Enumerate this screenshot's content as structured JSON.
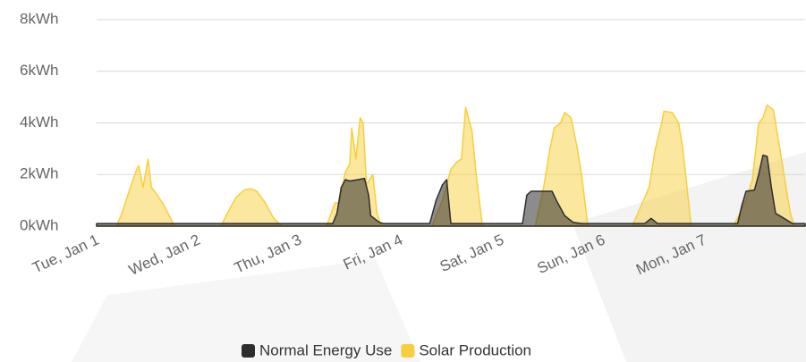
{
  "chart_data": {
    "type": "area",
    "xlim": [
      0,
      168
    ],
    "xticks": [
      {
        "value": 0,
        "label": "Tue, Jan 1"
      },
      {
        "value": 24,
        "label": "Wed, Jan 2"
      },
      {
        "value": 48,
        "label": "Thu, Jan 3"
      },
      {
        "value": 72,
        "label": "Fri, Jan 4"
      },
      {
        "value": 96,
        "label": "Sat, Jan 5"
      },
      {
        "value": 120,
        "label": "Sun, Jan 6"
      },
      {
        "value": 144,
        "label": "Mon, Jan 7"
      }
    ],
    "ylim": [
      0,
      8
    ],
    "yticks": [
      {
        "value": 0,
        "label": "0kWh"
      },
      {
        "value": 2,
        "label": "2kWh"
      },
      {
        "value": 4,
        "label": "4kWh"
      },
      {
        "value": 6,
        "label": "6kWh"
      },
      {
        "value": 8,
        "label": "8kWh"
      }
    ],
    "grid": true,
    "legend": "bottom",
    "series": [
      {
        "name": "Solar Production",
        "color": "#f7cf3e",
        "x": [
          0,
          4.7,
          6,
          8,
          9.5,
          10,
          11,
          12.2,
          13,
          14,
          16,
          18.5,
          29.5,
          31,
          33,
          35,
          36.5,
          38,
          40,
          42,
          44,
          54.5,
          56.5,
          57.5,
          59,
          60,
          60.5,
          61.5,
          62.5,
          63.2,
          64,
          65.5,
          66.5,
          67.5,
          79.5,
          82,
          84,
          85.5,
          86.5,
          87.5,
          89,
          90,
          91.5,
          104,
          106,
          107.5,
          108.5,
          110,
          111,
          112.5,
          114,
          115,
          116.5,
          127,
          131,
          132.5,
          134,
          134.5,
          136.5,
          138,
          139,
          141,
          151,
          154,
          155.5,
          157,
          158,
          159,
          160.5,
          162,
          163,
          164.5,
          165.5,
          168
        ],
        "values": [
          0,
          0,
          0.5,
          1.5,
          2.2,
          2.35,
          1.5,
          2.6,
          1.5,
          1.3,
          0.8,
          0,
          0,
          0.5,
          1.1,
          1.4,
          1.45,
          1.35,
          0.9,
          0.3,
          0,
          0,
          0.9,
          0.9,
          2.1,
          2.4,
          3.8,
          2.6,
          4.2,
          4.0,
          1.6,
          2.0,
          0.5,
          0,
          0,
          1.0,
          2.2,
          2.5,
          2.6,
          4.6,
          3.7,
          2.0,
          0,
          0,
          1.5,
          3.0,
          3.8,
          4.0,
          4.4,
          4.2,
          3.0,
          2.0,
          0,
          0,
          1.5,
          3.0,
          4.0,
          4.45,
          4.4,
          4.0,
          3.0,
          0,
          0,
          1.0,
          1.8,
          4.0,
          4.2,
          4.7,
          4.5,
          3.0,
          2.0,
          0.5,
          0,
          0
        ]
      },
      {
        "name": "Normal Energy Use",
        "color": "#2e2e2e",
        "x": [
          0,
          56,
          57,
          58,
          59,
          60,
          62,
          63.5,
          64.5,
          65,
          67,
          68,
          79,
          80.5,
          82,
          83,
          84,
          101,
          102,
          103,
          108,
          109,
          111,
          113,
          115,
          130,
          131.5,
          133,
          152,
          153,
          154,
          156,
          157,
          158,
          159,
          160,
          161,
          163,
          165,
          168
        ],
        "values": [
          0.1,
          0.1,
          0.5,
          1.5,
          1.8,
          1.75,
          1.8,
          1.85,
          1.2,
          0.4,
          0.15,
          0.1,
          0.1,
          1.0,
          1.6,
          1.8,
          0.1,
          0.1,
          1.2,
          1.35,
          1.35,
          1.0,
          0.4,
          0.15,
          0.1,
          0.1,
          0.3,
          0.1,
          0.1,
          0.8,
          1.35,
          1.4,
          2.0,
          2.75,
          2.7,
          1.5,
          0.5,
          0.3,
          0.1,
          0.1
        ]
      }
    ]
  }
}
